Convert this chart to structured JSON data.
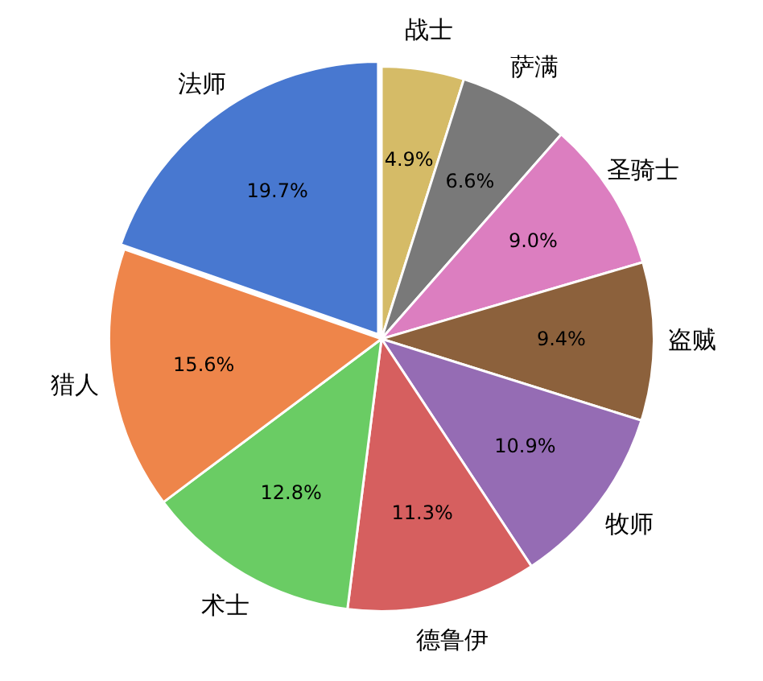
{
  "chart_data": {
    "type": "pie",
    "categories": [
      "战士",
      "萨满",
      "圣骑士",
      "盗贼",
      "牧师",
      "德鲁伊",
      "术士",
      "猎人",
      "法师"
    ],
    "values": [
      4.9,
      6.6,
      9.0,
      9.4,
      10.9,
      11.3,
      12.8,
      15.6,
      19.7
    ],
    "value_labels": [
      "4.9%",
      "6.6%",
      "9.0%",
      "9.4%",
      "10.9%",
      "11.3%",
      "12.8%",
      "15.6%",
      "19.7%"
    ],
    "colors": [
      "#d5bb67",
      "#797979",
      "#dc7ec0",
      "#8c613c",
      "#956cb4",
      "#d65f5f",
      "#6acc64",
      "#ee854a",
      "#4878d0"
    ],
    "legend": false
  }
}
